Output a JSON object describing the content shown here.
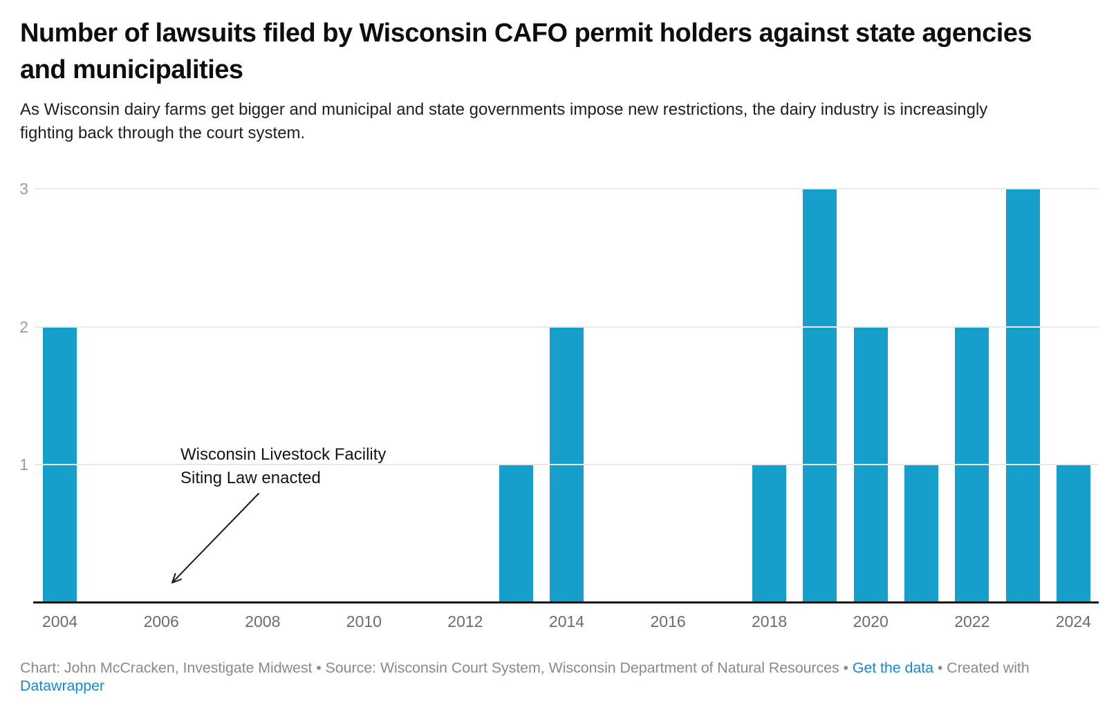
{
  "header": {
    "title": "Number of lawsuits filed by Wisconsin CAFO permit holders against state agencies and municipalities",
    "subtitle": "As Wisconsin dairy farms get bigger and municipal and state governments impose new restrictions, the dairy industry is increasingly fighting back through the court system."
  },
  "chart_data": {
    "type": "bar",
    "title": "Number of lawsuits filed by Wisconsin CAFO permit holders against state agencies and municipalities",
    "categories": [
      2004,
      2005,
      2006,
      2007,
      2008,
      2009,
      2010,
      2011,
      2012,
      2013,
      2014,
      2015,
      2016,
      2017,
      2018,
      2019,
      2020,
      2021,
      2022,
      2023,
      2024
    ],
    "values": [
      2,
      0,
      0,
      0,
      0,
      0,
      0,
      0,
      0,
      1,
      2,
      0,
      0,
      0,
      1,
      3,
      2,
      1,
      2,
      3,
      1
    ],
    "x_tick_labels": [
      "2004",
      "2006",
      "2008",
      "2010",
      "2012",
      "2014",
      "2016",
      "2018",
      "2020",
      "2022",
      "2024"
    ],
    "y_ticks": [
      1,
      2,
      3
    ],
    "ylim": [
      0,
      3
    ],
    "xlabel": "",
    "ylabel": "",
    "grid": "horizontal",
    "legend": "none",
    "bar_color": "#169fca",
    "annotation": {
      "lines": [
        "Wisconsin Livestock Facility",
        "Siting Law enacted"
      ],
      "arrow_points_to_year": 2006
    }
  },
  "footer": {
    "part1": "Chart: John McCracken, Investigate Midwest • Source: Wisconsin Court System, Wisconsin Department of Natural Resources • ",
    "link_get_data": "Get the data",
    "part2": " • Created with ",
    "link_datawrapper": "Datawrapper"
  },
  "colors": {
    "bar": "#169fca",
    "link_blue": "#1a86d8",
    "axis_line": "#161616",
    "gridline": "#e9e9e9"
  }
}
